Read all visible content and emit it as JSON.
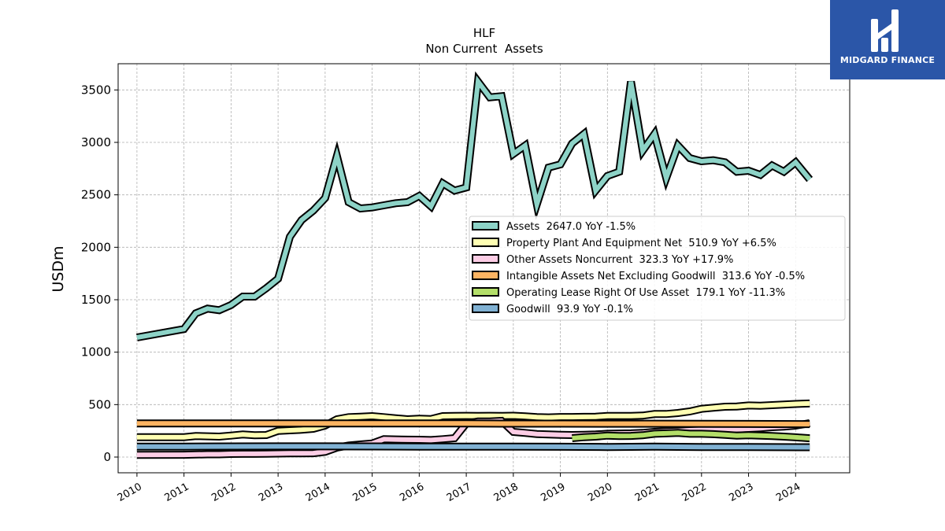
{
  "brand": {
    "name": "MIDGARD FINANCE",
    "color": "#2b56a8"
  },
  "chart_data": {
    "type": "line",
    "title": "HLF",
    "subtitle": "Non Current  Assets",
    "ylabel": "USDm",
    "xlabel": "",
    "ylim": [
      -150,
      3750
    ],
    "xlim": [
      2009.6,
      2025.15
    ],
    "y_ticks": [
      0,
      500,
      1000,
      1500,
      2000,
      2500,
      3000,
      3500
    ],
    "x_ticks": [
      2010,
      2011,
      2012,
      2013,
      2014,
      2015,
      2016,
      2017,
      2018,
      2019,
      2020,
      2021,
      2022,
      2023,
      2024
    ],
    "grid": true,
    "legend_position": "center-right",
    "series": [
      {
        "name": "Assets",
        "legend": "Assets  2647.0 YoY -1.5%",
        "color": "#8dd3c7",
        "x": [
          2010.0,
          2011.0,
          2011.25,
          2011.5,
          2011.75,
          2012.0,
          2012.25,
          2012.5,
          2012.75,
          2013.0,
          2013.25,
          2013.5,
          2013.75,
          2014.0,
          2014.25,
          2014.5,
          2014.75,
          2015.0,
          2015.25,
          2015.5,
          2015.75,
          2016.0,
          2016.25,
          2016.5,
          2016.75,
          2017.0,
          2017.25,
          2017.5,
          2017.75,
          2018.0,
          2018.25,
          2018.5,
          2018.75,
          2019.0,
          2019.25,
          2019.5,
          2019.75,
          2020.0,
          2020.25,
          2020.5,
          2020.75,
          2021.0,
          2021.25,
          2021.5,
          2021.75,
          2022.0,
          2022.25,
          2022.5,
          2022.75,
          2023.0,
          2023.25,
          2023.5,
          2023.75,
          2024.0,
          2024.3
        ],
        "values": [
          1140,
          1220,
          1370,
          1415,
          1400,
          1450,
          1530,
          1530,
          1610,
          1700,
          2100,
          2260,
          2350,
          2470,
          2870,
          2430,
          2370,
          2380,
          2400,
          2420,
          2430,
          2490,
          2390,
          2610,
          2540,
          2570,
          3580,
          3430,
          3440,
          2890,
          2970,
          2410,
          2760,
          2790,
          2990,
          3080,
          2540,
          2680,
          2720,
          3580,
          2920,
          3080,
          2660,
          2970,
          2850,
          2820,
          2830,
          2810,
          2720,
          2730,
          2690,
          2780,
          2720,
          2810,
          2647
        ]
      },
      {
        "name": "Property Plant And Equipment Net",
        "legend": "Property Plant And Equipment Net  510.9 YoY +6.5%",
        "color": "#ffffb3",
        "x": [
          2010.0,
          2011.0,
          2011.25,
          2011.5,
          2011.75,
          2012.0,
          2012.25,
          2012.5,
          2012.75,
          2013.0,
          2013.25,
          2013.5,
          2013.75,
          2014.0,
          2014.25,
          2014.5,
          2014.75,
          2015.0,
          2015.25,
          2015.5,
          2015.75,
          2016.0,
          2016.25,
          2016.5,
          2016.75,
          2017.0,
          2017.25,
          2017.5,
          2017.75,
          2018.0,
          2018.25,
          2018.5,
          2018.75,
          2019.0,
          2019.25,
          2019.5,
          2019.75,
          2020.0,
          2020.25,
          2020.5,
          2020.75,
          2021.0,
          2021.25,
          2021.5,
          2021.75,
          2022.0,
          2022.25,
          2022.5,
          2022.75,
          2023.0,
          2023.25,
          2023.5,
          2023.75,
          2024.0,
          2024.3
        ],
        "values": [
          190,
          190,
          200,
          198,
          195,
          205,
          215,
          208,
          210,
          250,
          255,
          260,
          270,
          300,
          360,
          380,
          385,
          390,
          380,
          370,
          360,
          365,
          362,
          390,
          392,
          393,
          392,
          393,
          392,
          394,
          388,
          380,
          378,
          382,
          382,
          383,
          385,
          392,
          392,
          392,
          395,
          410,
          410,
          420,
          435,
          460,
          470,
          480,
          482,
          492,
          490,
          495,
          500,
          506,
          511
        ]
      },
      {
        "name": "Other Assets Noncurrent",
        "legend": "Other Assets Noncurrent  323.3 YoY +17.9%",
        "color": "#fccde5",
        "x": [
          2010.0,
          2011.0,
          2011.25,
          2011.5,
          2011.75,
          2012.0,
          2012.25,
          2012.5,
          2012.75,
          2013.0,
          2013.25,
          2013.5,
          2013.75,
          2014.0,
          2014.25,
          2014.5,
          2014.75,
          2015.0,
          2015.25,
          2015.5,
          2015.75,
          2016.0,
          2016.25,
          2016.5,
          2016.75,
          2017.0,
          2017.25,
          2017.5,
          2017.75,
          2018.0,
          2018.25,
          2018.5,
          2018.75,
          2019.0,
          2019.25,
          2019.5,
          2019.75,
          2020.0,
          2020.25,
          2020.5,
          2020.75,
          2021.0,
          2021.25,
          2021.5,
          2021.75,
          2022.0,
          2022.25,
          2022.5,
          2022.75,
          2023.0,
          2023.25,
          2023.5,
          2023.75,
          2024.0,
          2024.3
        ],
        "values": [
          20,
          22,
          24,
          26,
          26,
          30,
          31,
          31,
          32,
          34,
          35,
          36,
          37,
          50,
          90,
          110,
          120,
          130,
          170,
          168,
          166,
          165,
          162,
          170,
          180,
          320,
          340,
          340,
          345,
          240,
          230,
          220,
          215,
          212,
          210,
          212,
          215,
          222,
          224,
          226,
          230,
          240,
          245,
          250,
          255,
          260,
          262,
          262,
          264,
          270,
          275,
          285,
          290,
          300,
          323
        ]
      },
      {
        "name": "Intangible Assets Net Excluding Goodwill",
        "legend": "Intangible Assets Net Excluding Goodwill  313.6 YoY -0.5%",
        "color": "#fdb462",
        "x": [
          2010.0,
          2011.0,
          2012.0,
          2013.0,
          2014.0,
          2015.0,
          2016.0,
          2017.0,
          2018.0,
          2019.0,
          2020.0,
          2021.0,
          2022.0,
          2023.0,
          2024.3
        ],
        "values": [
          320,
          320,
          321,
          321,
          321,
          320,
          320,
          320,
          319,
          319,
          318,
          318,
          317,
          316,
          314
        ]
      },
      {
        "name": "Operating Lease Right Of Use Asset",
        "legend": "Operating Lease Right Of Use Asset  179.1 YoY -11.3%",
        "color": "#b3de69",
        "x": [
          2019.25,
          2019.5,
          2019.75,
          2020.0,
          2020.25,
          2020.5,
          2020.75,
          2021.0,
          2021.25,
          2021.5,
          2021.75,
          2022.0,
          2022.25,
          2022.5,
          2022.75,
          2023.0,
          2023.25,
          2023.5,
          2023.75,
          2024.0,
          2024.3
        ],
        "values": [
          180,
          190,
          195,
          205,
          200,
          202,
          208,
          222,
          226,
          230,
          222,
          222,
          218,
          212,
          205,
          208,
          205,
          200,
          195,
          188,
          179
        ]
      },
      {
        "name": "Goodwill",
        "legend": "Goodwill  93.9 YoY -0.1%",
        "color": "#80b1d3",
        "x": [
          2010.0,
          2011.0,
          2012.0,
          2013.0,
          2014.0,
          2015.0,
          2016.0,
          2017.0,
          2018.0,
          2019.0,
          2020.0,
          2021.0,
          2022.0,
          2023.0,
          2024.3
        ],
        "values": [
          100,
          100,
          101,
          102,
          102,
          101,
          100,
          99,
          100,
          98,
          96,
          100,
          96,
          95,
          94
        ]
      }
    ]
  }
}
